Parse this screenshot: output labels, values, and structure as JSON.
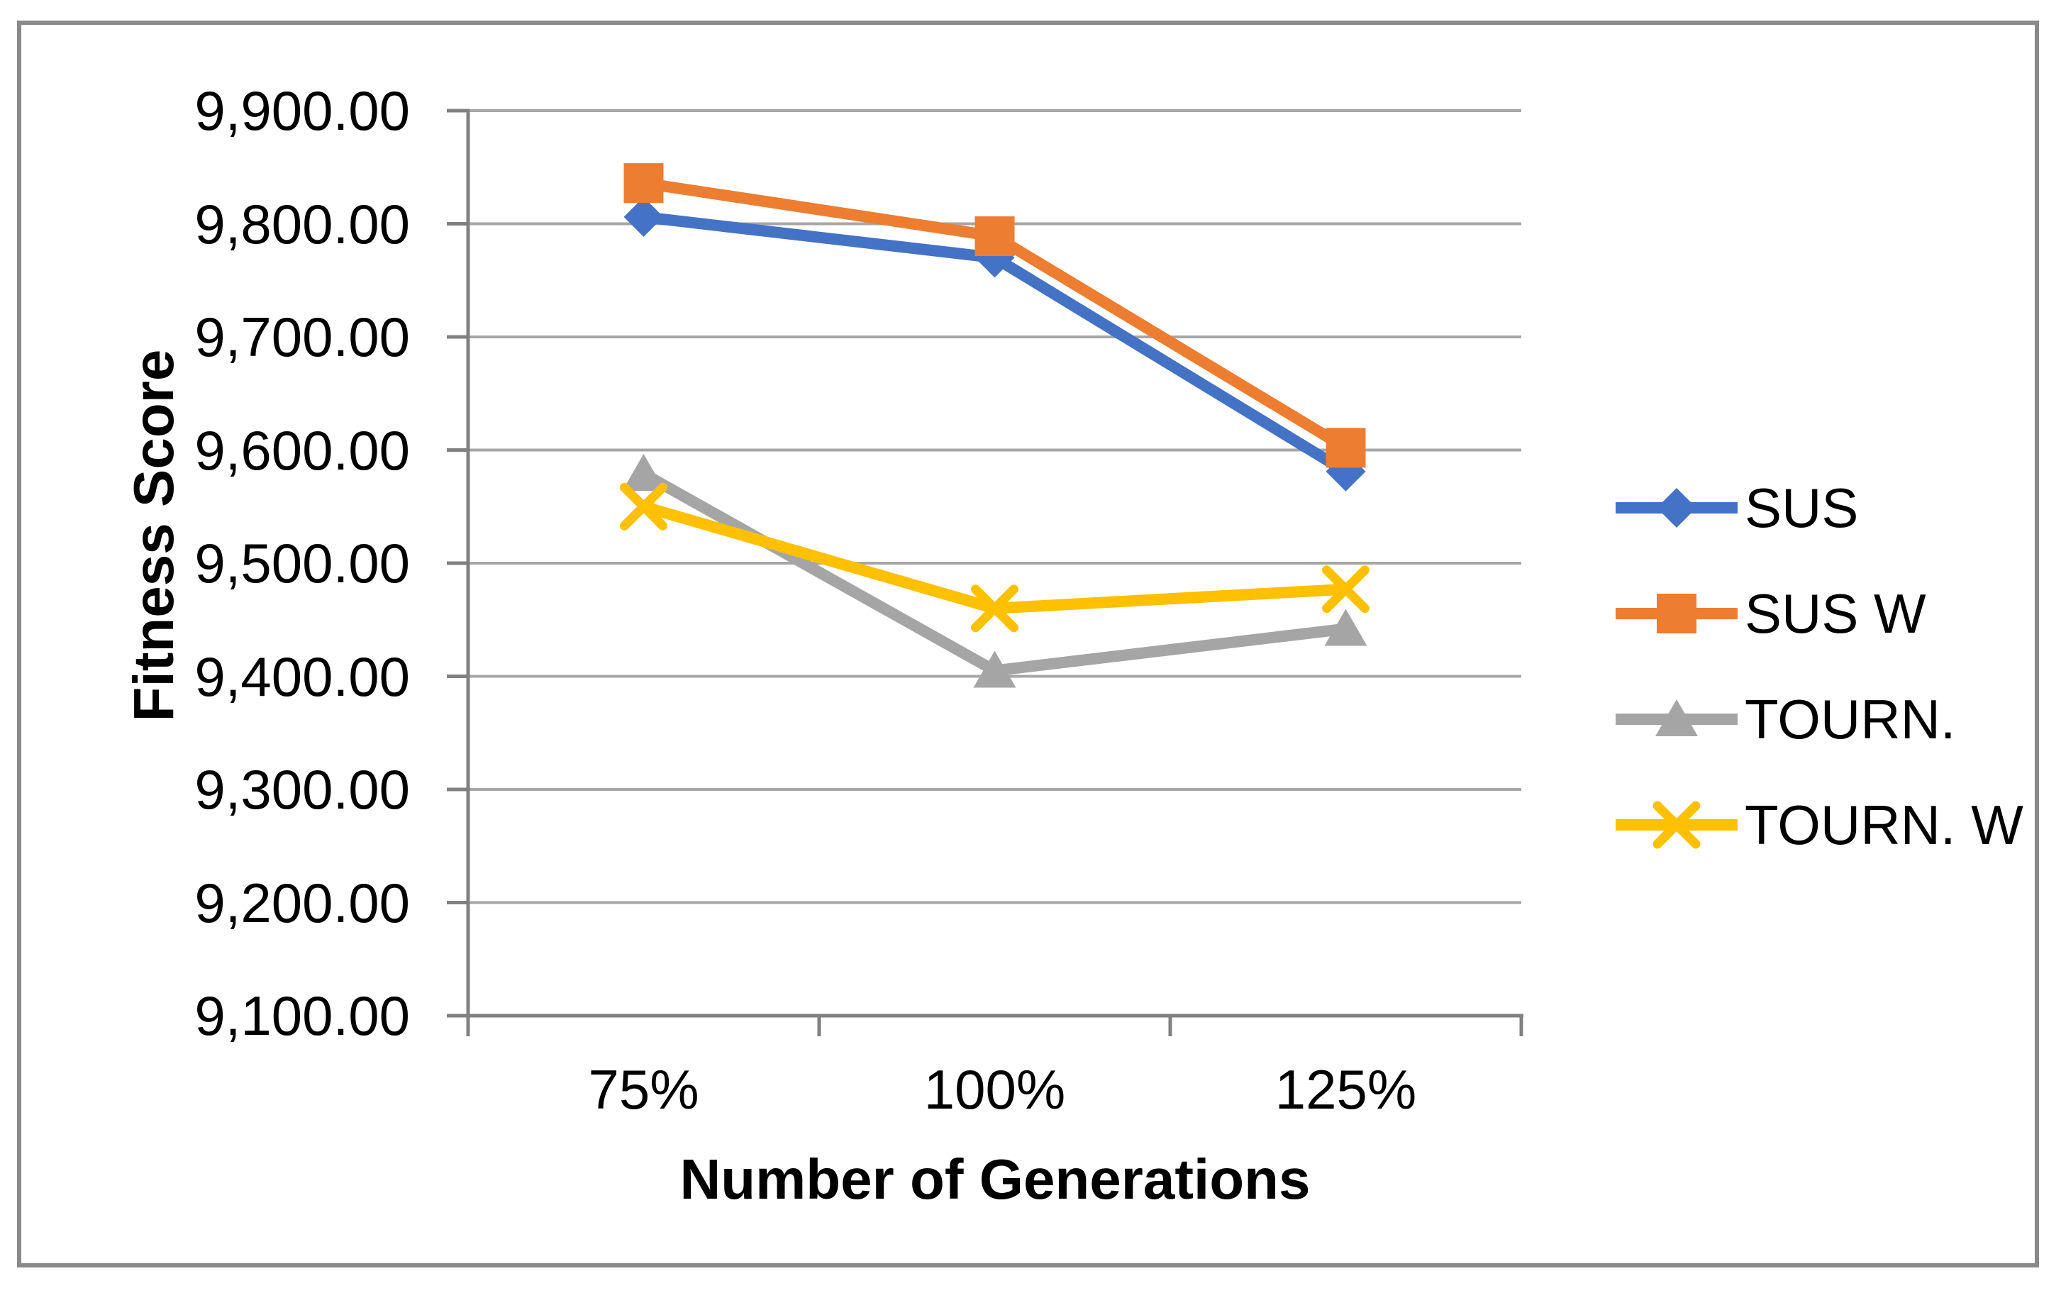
{
  "chart_data": {
    "type": "line",
    "title": "",
    "xlabel": "Number of Generations",
    "ylabel": "Fitness Score",
    "categories": [
      "75%",
      "100%",
      "125%"
    ],
    "y_tick_labels": [
      "9,900.00",
      "9,800.00",
      "9,700.00",
      "9,600.00",
      "9,500.00",
      "9,400.00",
      "9,300.00",
      "9,200.00",
      "9,100.00"
    ],
    "ylim": [
      9100,
      9900
    ],
    "y_tick_step": 100,
    "grid": true,
    "legend_position": "right",
    "series": [
      {
        "name": "SUS",
        "color": "#4472C4",
        "marker": "diamond",
        "values": [
          9806,
          9770,
          9581
        ]
      },
      {
        "name": "SUS W",
        "color": "#ED7D31",
        "marker": "square",
        "values": [
          9836,
          9789,
          9602
        ]
      },
      {
        "name": "TOURN.",
        "color": "#A5A5A5",
        "marker": "triangle",
        "values": [
          9579,
          9405,
          9442
        ]
      },
      {
        "name": "TOURN. W",
        "color": "#FFC000",
        "marker": "x",
        "values": [
          9550,
          9460,
          9477
        ]
      }
    ],
    "colors": {
      "gridline": "#A6A6A6",
      "axis": "#808080",
      "border": "#898989",
      "text": "#000000"
    }
  }
}
